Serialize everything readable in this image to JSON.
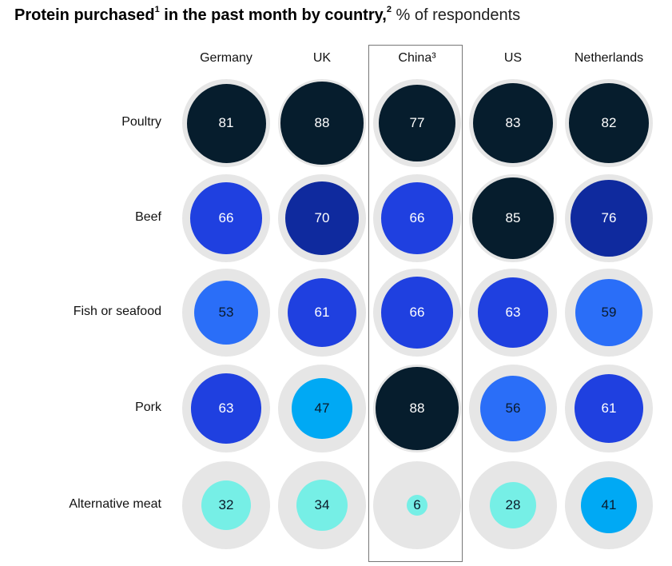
{
  "chart_data": {
    "type": "bubble-grid",
    "title": "Protein purchased",
    "title_footnote": "1",
    "title_rest": " in the past month by country,",
    "title_footnote2": "2",
    "subtitle": " % of respondents",
    "columns": [
      "Germany",
      "UK",
      "China³",
      "US",
      "Netherlands"
    ],
    "highlighted_column": "China³",
    "rows": [
      "Poultry",
      "Beef",
      "Fish or seafood",
      "Pork",
      "Alternative meat"
    ],
    "values": [
      [
        81,
        88,
        77,
        83,
        82
      ],
      [
        66,
        70,
        66,
        85,
        76
      ],
      [
        53,
        61,
        66,
        63,
        59
      ],
      [
        63,
        47,
        88,
        56,
        61
      ],
      [
        32,
        34,
        6,
        28,
        41
      ]
    ],
    "max_value": 100,
    "color_bands": [
      {
        "min": 77,
        "color": "#061d2d",
        "text": "#ffffff"
      },
      {
        "min": 70,
        "color": "#0f2a9e",
        "text": "#ffffff"
      },
      {
        "min": 60,
        "color": "#1f40e0",
        "text": "#ffffff"
      },
      {
        "min": 50,
        "color": "#2a6ef8",
        "text": "#0b1a2a"
      },
      {
        "min": 40,
        "color": "#00a9f4",
        "text": "#0b1a2a"
      },
      {
        "min": 0,
        "color": "#76efe6",
        "text": "#0b1a2a"
      }
    ]
  }
}
